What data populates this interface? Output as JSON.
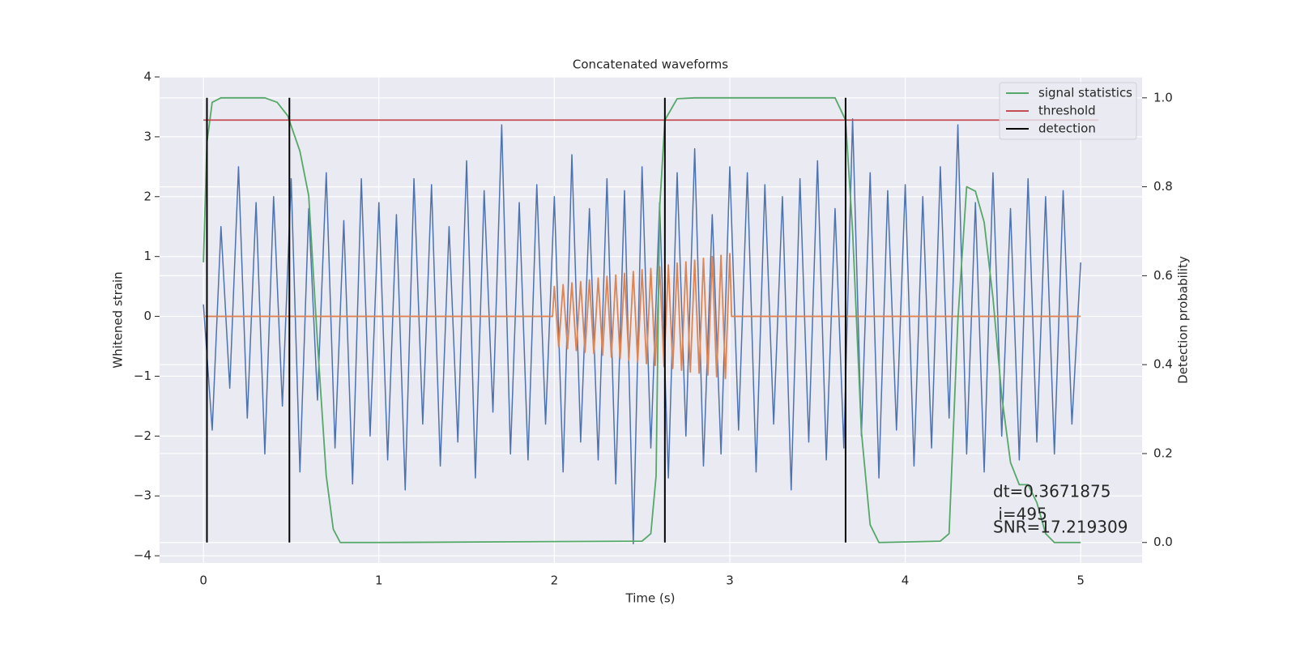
{
  "chart_data": {
    "type": "line",
    "title": "Concatenated waveforms",
    "xlabel": "Time (s)",
    "ylabel": "Whitened strain",
    "y2label": "Detection probability",
    "xlim": [
      -0.25,
      5.35
    ],
    "ylim": [
      -4.12,
      4.0
    ],
    "y2lim": [
      -0.046,
      1.047
    ],
    "xticks": [
      0,
      1,
      2,
      3,
      4,
      5
    ],
    "yticks": [
      {
        "value": -4,
        "label": "−4"
      },
      {
        "value": -3,
        "label": "−3"
      },
      {
        "value": -2,
        "label": "−2"
      },
      {
        "value": -1,
        "label": "−1"
      },
      0,
      1,
      2,
      3,
      4
    ],
    "y2ticks": [
      {
        "value": 0,
        "label": "0.0"
      },
      0.2,
      0.4,
      0.6,
      0.8,
      {
        "value": 1,
        "label": "1.0"
      }
    ],
    "grid": true,
    "legend": "upper right",
    "series": [
      {
        "color": "#4c72b0",
        "x": [
          0,
          0.05,
          0.1,
          0.15,
          0.2,
          0.25,
          0.3,
          0.35,
          0.4,
          0.45,
          0.5,
          0.55,
          0.6,
          0.65,
          0.7,
          0.75,
          0.8,
          0.85,
          0.9,
          0.95,
          1,
          1.05,
          1.1,
          1.15,
          1.2,
          1.25,
          1.3,
          1.35,
          1.4,
          1.45,
          1.5,
          1.55,
          1.6,
          1.65,
          1.7,
          1.75,
          1.8,
          1.85,
          1.9,
          1.95,
          2,
          2.05,
          2.1,
          2.15,
          2.2,
          2.25,
          2.3,
          2.35,
          2.4,
          2.45,
          2.5,
          2.55,
          2.6,
          2.65,
          2.7,
          2.75,
          2.8,
          2.85,
          2.9,
          2.95,
          3,
          3.05,
          3.1,
          3.15,
          3.2,
          3.25,
          3.3,
          3.35,
          3.4,
          3.45,
          3.5,
          3.55,
          3.6,
          3.65,
          3.7,
          3.75,
          3.8,
          3.85,
          3.9,
          3.95,
          4,
          4.05,
          4.1,
          4.15,
          4.2,
          4.25,
          4.3,
          4.35,
          4.4,
          4.45,
          4.5,
          4.55,
          4.6,
          4.65,
          4.7,
          4.75,
          4.8,
          4.85,
          4.9,
          4.95,
          5
        ],
        "values": [
          0.2,
          -1.9,
          1.5,
          -1.2,
          2.5,
          -1.7,
          1.9,
          -2.3,
          2.0,
          -1.5,
          2.3,
          -2.6,
          1.8,
          -1.4,
          2.4,
          -2.2,
          1.6,
          -2.8,
          2.3,
          -2.0,
          1.9,
          -2.4,
          1.7,
          -2.9,
          2.3,
          -1.8,
          2.2,
          -2.5,
          1.5,
          -2.1,
          2.6,
          -2.7,
          2.1,
          -1.6,
          3.2,
          -2.3,
          1.9,
          -2.4,
          2.2,
          -1.8,
          2.0,
          -2.6,
          2.7,
          -2.1,
          1.8,
          -2.4,
          2.3,
          -2.8,
          2.1,
          -3.8,
          2.5,
          -2.2,
          1.9,
          -2.7,
          2.4,
          -2.0,
          2.8,
          -2.5,
          1.7,
          -2.3,
          2.5,
          -1.9,
          2.4,
          -2.6,
          2.2,
          -1.8,
          2.0,
          -2.9,
          2.3,
          -2.1,
          2.6,
          -2.4,
          1.8,
          -2.2,
          3.3,
          -2.0,
          2.4,
          -2.7,
          2.1,
          -1.9,
          2.2,
          -2.5,
          2.0,
          -2.2,
          2.5,
          -1.7,
          3.2,
          -2.3,
          1.9,
          -2.6,
          2.4,
          -2.0,
          1.8,
          -2.4,
          2.3,
          -2.1,
          2.0,
          -2.3,
          2.1,
          -1.8,
          0.9
        ]
      },
      {
        "color": "#dd8452",
        "x": [
          0,
          1.99,
          2,
          2.025,
          2.05,
          2.075,
          2.1,
          2.125,
          2.15,
          2.175,
          2.2,
          2.225,
          2.25,
          2.275,
          2.3,
          2.325,
          2.35,
          2.375,
          2.4,
          2.425,
          2.45,
          2.475,
          2.5,
          2.525,
          2.55,
          2.575,
          2.6,
          2.625,
          2.65,
          2.675,
          2.7,
          2.725,
          2.75,
          2.775,
          2.8,
          2.825,
          2.85,
          2.875,
          2.9,
          2.925,
          2.95,
          2.975,
          3,
          3.01,
          5
        ],
        "values": [
          0,
          0,
          0.5,
          -0.51,
          0.53,
          -0.54,
          0.56,
          -0.57,
          0.58,
          -0.6,
          0.61,
          -0.62,
          0.64,
          -0.65,
          0.67,
          -0.68,
          0.69,
          -0.71,
          0.72,
          -0.73,
          0.75,
          -0.76,
          0.78,
          -0.79,
          0.8,
          -0.82,
          0.83,
          -0.84,
          0.86,
          -0.87,
          0.89,
          -0.9,
          0.91,
          -0.93,
          0.94,
          -0.95,
          0.97,
          -0.98,
          1.0,
          -1.01,
          1.02,
          -1.04,
          1.05,
          0,
          0
        ]
      },
      {
        "name": "signal statistics",
        "color": "#55a868",
        "axis": "y2",
        "x": [
          0,
          0.02,
          0.05,
          0.1,
          0.35,
          0.42,
          0.48,
          0.55,
          0.6,
          0.65,
          0.7,
          0.74,
          0.78,
          1.0,
          2.5,
          2.55,
          2.58,
          2.6,
          2.63,
          2.7,
          2.8,
          3.6,
          3.66,
          3.7,
          3.75,
          3.8,
          3.85,
          4.2,
          4.25,
          4.3,
          4.35,
          4.4,
          4.45,
          4.5,
          4.55,
          4.6,
          4.65,
          4.7,
          4.75,
          4.8,
          4.85,
          5.0
        ],
        "values": [
          0.63,
          0.9,
          0.99,
          1.0,
          1.0,
          0.99,
          0.96,
          0.88,
          0.78,
          0.45,
          0.15,
          0.03,
          0.0,
          0.0,
          0.003,
          0.02,
          0.15,
          0.75,
          0.95,
          0.998,
          1.0,
          1.0,
          0.95,
          0.7,
          0.25,
          0.04,
          0.0,
          0.003,
          0.02,
          0.5,
          0.8,
          0.79,
          0.72,
          0.55,
          0.33,
          0.18,
          0.13,
          0.13,
          0.09,
          0.02,
          0.0,
          0.0
        ]
      },
      {
        "name": "threshold",
        "color": "#c44e52",
        "axis": "y2",
        "x": [
          0,
          5.1
        ],
        "values": [
          0.95,
          0.95
        ]
      },
      {
        "name": "detection",
        "color": "#000000",
        "axis": "y2",
        "kind": "vlines",
        "x": [
          0.02,
          0.49,
          2.63,
          3.66
        ],
        "ymin": 0,
        "ymax": 1
      }
    ],
    "annotation": [
      "dt=0.3671875",
      " i=495",
      "SNR=17.219309"
    ]
  }
}
